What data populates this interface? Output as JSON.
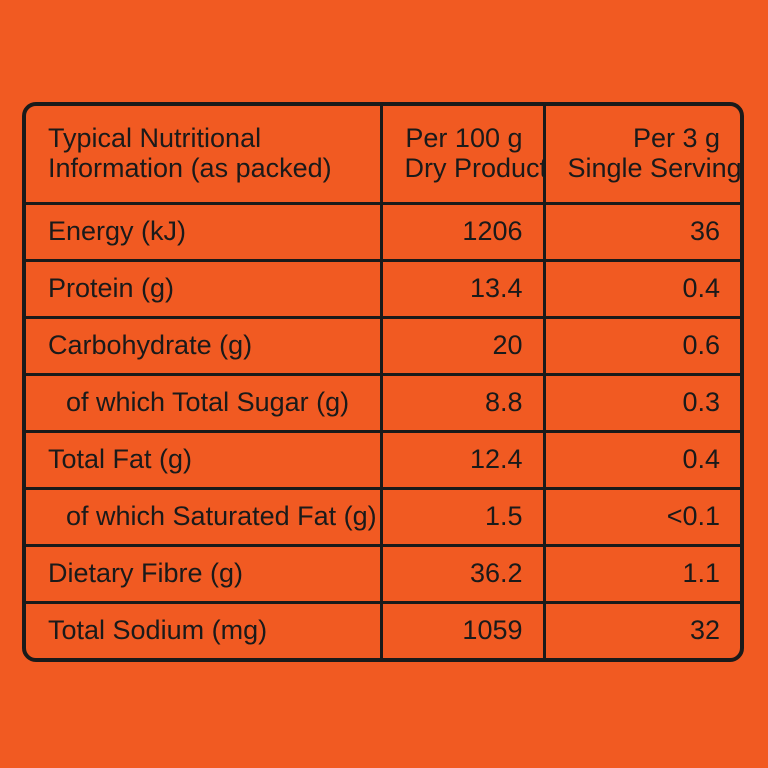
{
  "header": {
    "label_line1": "Typical Nutritional",
    "label_line2": "Information (as packed)",
    "col1_line1": "Per 100 g",
    "col1_line2": "Dry Product",
    "col2_line1": "Per 3 g",
    "col2_line2": "Single Serving"
  },
  "rows": [
    {
      "label": "Energy (kJ)",
      "per100": "1206",
      "perServing": "36"
    },
    {
      "label": "Protein (g)",
      "per100": "13.4",
      "perServing": "0.4"
    },
    {
      "label": "Carbohydrate (g)",
      "per100": "20",
      "perServing": "0.6"
    },
    {
      "label": "of which Total Sugar (g)",
      "per100": "8.8",
      "perServing": "0.3"
    },
    {
      "label": "Total Fat (g)",
      "per100": "12.4",
      "perServing": "0.4"
    },
    {
      "label": "of which Saturated Fat (g)",
      "per100": "1.5",
      "perServing": "<0.1"
    },
    {
      "label": "Dietary Fibre (g)",
      "per100": "36.2",
      "perServing": "1.1"
    },
    {
      "label": "Total Sodium (mg)",
      "per100": "1059",
      "perServing": "32"
    }
  ],
  "colors": {
    "background": "#f15a22",
    "ink": "#1a1a1a"
  }
}
